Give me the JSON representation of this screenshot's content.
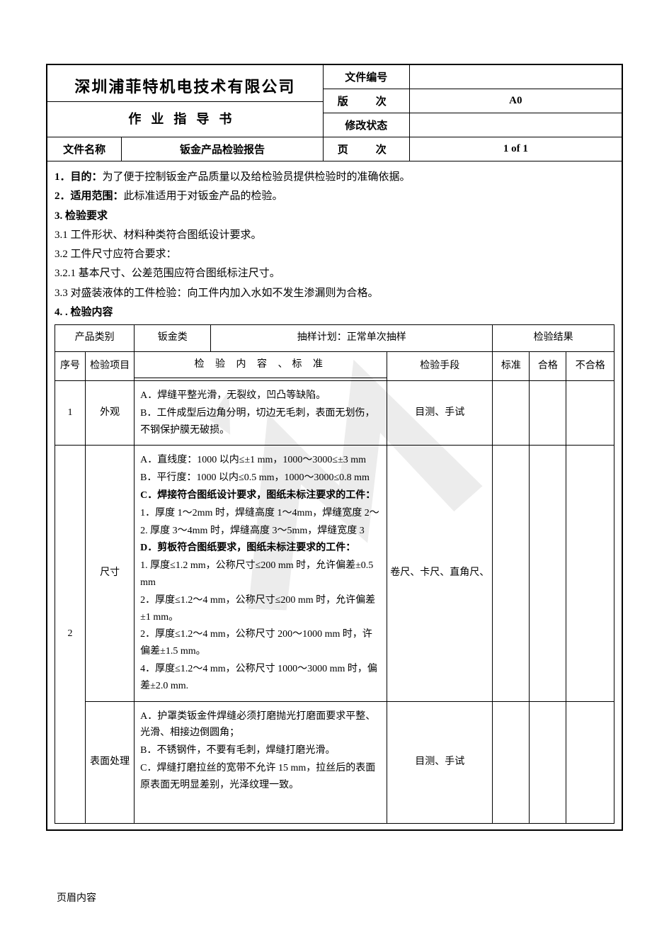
{
  "header": {
    "company": "深圳浦菲特机电技术有限公司",
    "subtitle": "作业指导书",
    "doc_number_label": "文件编号",
    "doc_number_value": "",
    "version_label": "版　次",
    "version_value": "A0",
    "revision_label": "修改状态",
    "revision_value": "",
    "file_name_label": "文件名称",
    "file_name_value": "钣金产品检验报告",
    "page_label": "页　次",
    "page_value": "1  of  1"
  },
  "body": {
    "line1_label": "1．目的：",
    "line1_text": "为了便于控制钣金产品质量以及给检验员提供检验时的准确依据。",
    "line2_label": "2．适用范围：",
    "line2_text": "此标准适用于对钣金产品的检验。",
    "line3": "3. 检验要求",
    "line3_1": "3.1 工件形状、材料种类符合图纸设计要求。",
    "line3_2": "3.2 工件尺寸应符合要求：",
    "line3_2_1": "3.2.1 基本尺寸、公差范围应符合图纸标注尺寸。",
    "line3_3": "3.3 对盛装液体的工件检验：向工件内加入水如不发生渗漏则为合格。",
    "line4": "4. . 检验内容"
  },
  "inner": {
    "product_type_label": "产品类别",
    "product_type_value": "钣金类",
    "sampling_label": "抽样计划：正常单次抽样",
    "result_label": "检验结果",
    "seq_label": "序号",
    "item_label": "检验项目",
    "content_header": "检 验 内 容 、标 准",
    "method_label": "检验手段",
    "std_label": "标准",
    "pass_label": "合格",
    "fail_label": "不合格",
    "rows": [
      {
        "seq": "1",
        "item": "外观",
        "content_lines": [
          "A．焊缝平整光滑，无裂纹，凹凸等缺陷。",
          "B．工件成型后边角分明，切边无毛刺，表面无划伤，不钢保护膜无破损。"
        ],
        "method": "目测、手试"
      },
      {
        "seq": "2",
        "item1": "尺寸",
        "content1_lines": [
          "A．直线度：1000 以内≤±1 mm，1000～3000≤±3 mm",
          "B．平行度：1000 以内≤0.5 mm，1000～3000≤0.8 mm",
          {
            "bold": true,
            "text": "C．焊接符合图纸设计要求，图纸未标注要求的工件："
          },
          "1．厚度 1～2mm 时，焊缝高度 1～4mm，焊缝宽度 2～",
          "2. 厚度 3～4mm 时，焊缝高度 3～5mm，焊缝宽度 3",
          {
            "bold": true,
            "text": "D．剪板符合图纸要求，图纸未标注要求的工件："
          },
          "1. 厚度≤1.2 mm，公称尺寸≤200 mm 时，允许偏差±0.5 mm",
          "2．厚度≤1.2～4 mm，公称尺寸≤200 mm 时，允许偏差±1 mm。",
          "2．厚度≤1.2～4 mm，公称尺寸 200～1000 mm 时，许偏差±1.5 mm。",
          "4．厚度≤1.2～4 mm，公称尺寸 1000～3000 mm 时，偏差±2.0 mm."
        ],
        "method1": "卷尺、卡尺、直角尺、",
        "item2": "表面处理",
        "content2_lines": [
          "A．护罩类钣金件焊缝必须打磨抛光打磨面要求平整、光滑、相接边倒圆角；",
          "B．不锈钢件，不要有毛刺，焊缝打磨光滑。",
          "C．焊缝打磨拉丝的宽带不允许 15 mm，拉丝后的表面原表面无明显差别，光泽纹理一致。"
        ],
        "method2": "目测、手试"
      }
    ]
  },
  "footer": "页眉内容"
}
